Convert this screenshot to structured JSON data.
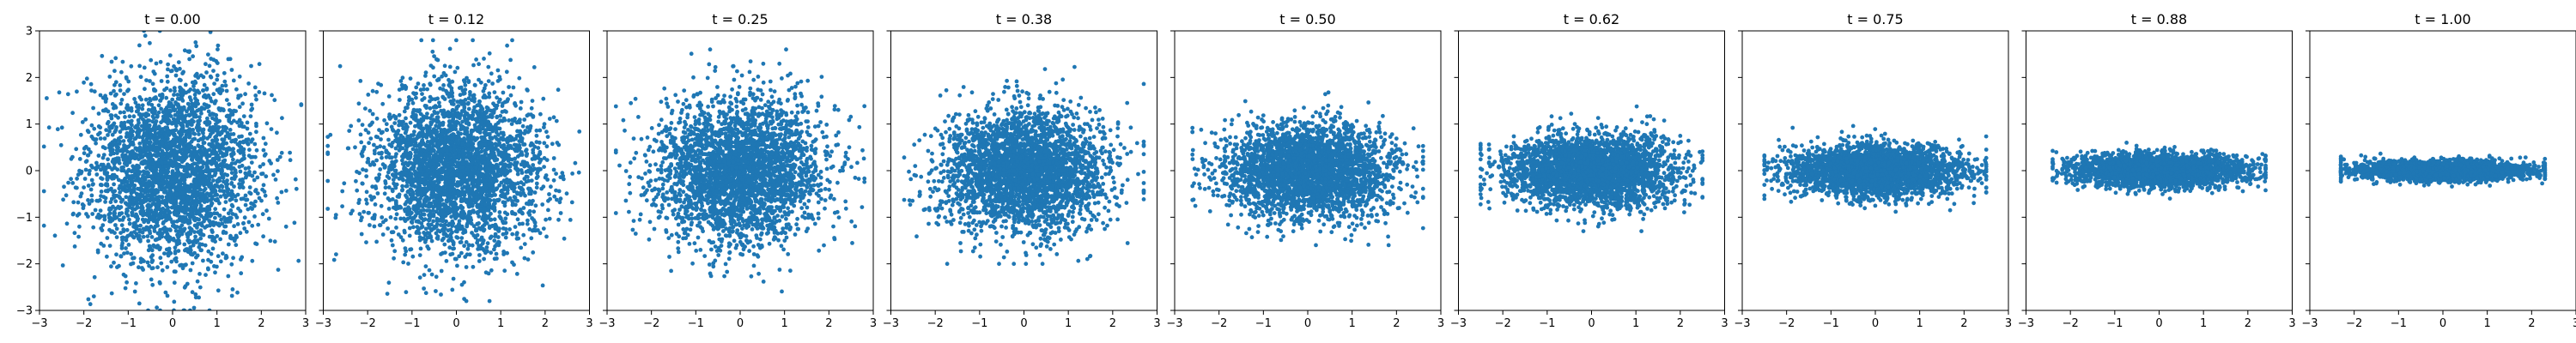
{
  "chart_data": {
    "type": "scatter",
    "point_color": "#1f77b4",
    "xlim": [
      -3,
      3
    ],
    "ylim": [
      -3,
      3
    ],
    "x_ticks": [
      -3,
      -2,
      -1,
      0,
      1,
      2,
      3
    ],
    "y_ticks": [
      -3,
      -2,
      -1,
      0,
      1,
      2,
      3
    ],
    "y_tick_labels_shown_on": "first panel only",
    "grid": false,
    "points_per_panel": 3000,
    "panels": [
      {
        "title": "t = 0.00",
        "t": 0.0,
        "x_spread_std": 0.95,
        "y_spread_std": 1.0,
        "x_range": [
          -2.9,
          2.9
        ],
        "y_range": [
          -3.0,
          3.0
        ]
      },
      {
        "title": "t = 0.12",
        "t": 0.12,
        "x_spread_std": 0.95,
        "y_spread_std": 0.9,
        "x_range": [
          -2.9,
          2.9
        ],
        "y_range": [
          -2.8,
          2.8
        ]
      },
      {
        "title": "t = 0.25",
        "t": 0.25,
        "x_spread_std": 0.95,
        "y_spread_std": 0.78,
        "x_range": [
          -2.8,
          2.8
        ],
        "y_range": [
          -2.6,
          2.6
        ]
      },
      {
        "title": "t = 0.38",
        "t": 0.38,
        "x_spread_std": 0.95,
        "y_spread_std": 0.65,
        "x_range": [
          -2.7,
          2.7
        ],
        "y_range": [
          -2.0,
          2.5
        ]
      },
      {
        "title": "t = 0.50",
        "t": 0.5,
        "x_spread_std": 0.95,
        "y_spread_std": 0.5,
        "x_range": [
          -2.6,
          2.6
        ],
        "y_range": [
          -1.6,
          2.0
        ]
      },
      {
        "title": "t = 0.62",
        "t": 0.62,
        "x_spread_std": 0.95,
        "y_spread_std": 0.38,
        "x_range": [
          -2.5,
          2.5
        ],
        "y_range": [
          -1.3,
          1.6
        ]
      },
      {
        "title": "t = 0.75",
        "t": 0.75,
        "x_spread_std": 0.95,
        "y_spread_std": 0.27,
        "x_range": [
          -2.5,
          2.5
        ],
        "y_range": [
          -1.0,
          1.1
        ]
      },
      {
        "title": "t = 0.88",
        "t": 0.88,
        "x_spread_std": 0.95,
        "y_spread_std": 0.17,
        "x_range": [
          -2.4,
          2.4
        ],
        "y_range": [
          -0.6,
          0.6
        ]
      },
      {
        "title": "t = 1.00",
        "t": 1.0,
        "x_spread_std": 0.95,
        "y_spread_std": 0.1,
        "x_range": [
          -2.3,
          2.3
        ],
        "y_range": [
          -0.4,
          0.4
        ]
      }
    ]
  }
}
